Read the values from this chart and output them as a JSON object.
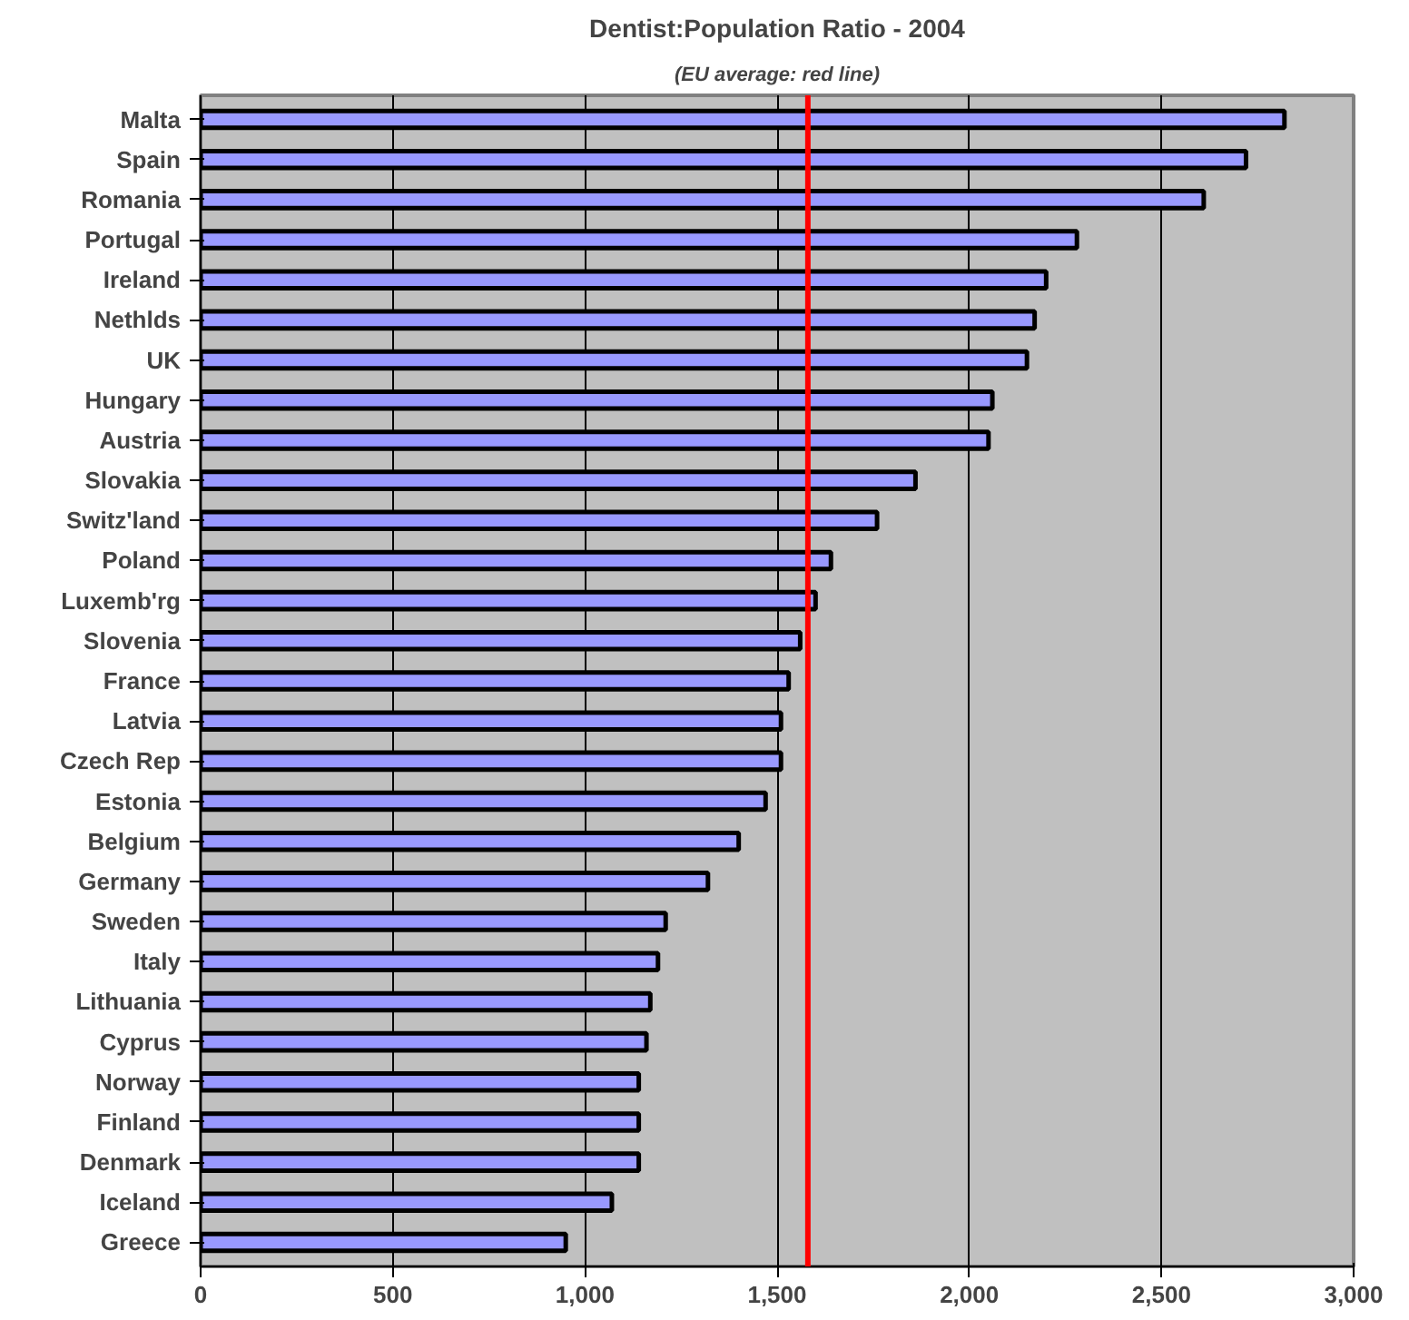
{
  "chart_data": {
    "type": "bar",
    "orientation": "horizontal",
    "title": "Dentist:Population Ratio - 2004",
    "subtitle": "(EU average: red line)",
    "categories": [
      "Malta",
      "Spain",
      "Romania",
      "Portugal",
      "Ireland",
      "Nethlds",
      "UK",
      "Hungary",
      "Austria",
      "Slovakia",
      "Switz'land",
      "Poland",
      "Luxemb'rg",
      "Slovenia",
      "France",
      "Latvia",
      "Czech Rep",
      "Estonia",
      "Belgium",
      "Germany",
      "Sweden",
      "Italy",
      "Lithuania",
      "Cyprus",
      "Norway",
      "Finland",
      "Denmark",
      "Iceland",
      "Greece"
    ],
    "values": [
      2820,
      2720,
      2610,
      2280,
      2200,
      2170,
      2150,
      2060,
      2050,
      1860,
      1760,
      1640,
      1600,
      1560,
      1530,
      1510,
      1510,
      1470,
      1400,
      1320,
      1210,
      1190,
      1170,
      1160,
      1140,
      1140,
      1140,
      1070,
      950
    ],
    "color": "#9999ff",
    "xlim": [
      0,
      3000
    ],
    "xticks": [
      {
        "value": 0,
        "label": "0"
      },
      {
        "value": 500,
        "label": "500"
      },
      {
        "value": 1000,
        "label": "1,000"
      },
      {
        "value": 1500,
        "label": "1,500"
      },
      {
        "value": 2000,
        "label": "2,000"
      },
      {
        "value": 2500,
        "label": "2,500"
      },
      {
        "value": 3000,
        "label": "3,000"
      }
    ],
    "grid": "x",
    "ref_lines": [
      {
        "axis": "x",
        "value": 1580,
        "color": "#ff0000"
      }
    ]
  }
}
